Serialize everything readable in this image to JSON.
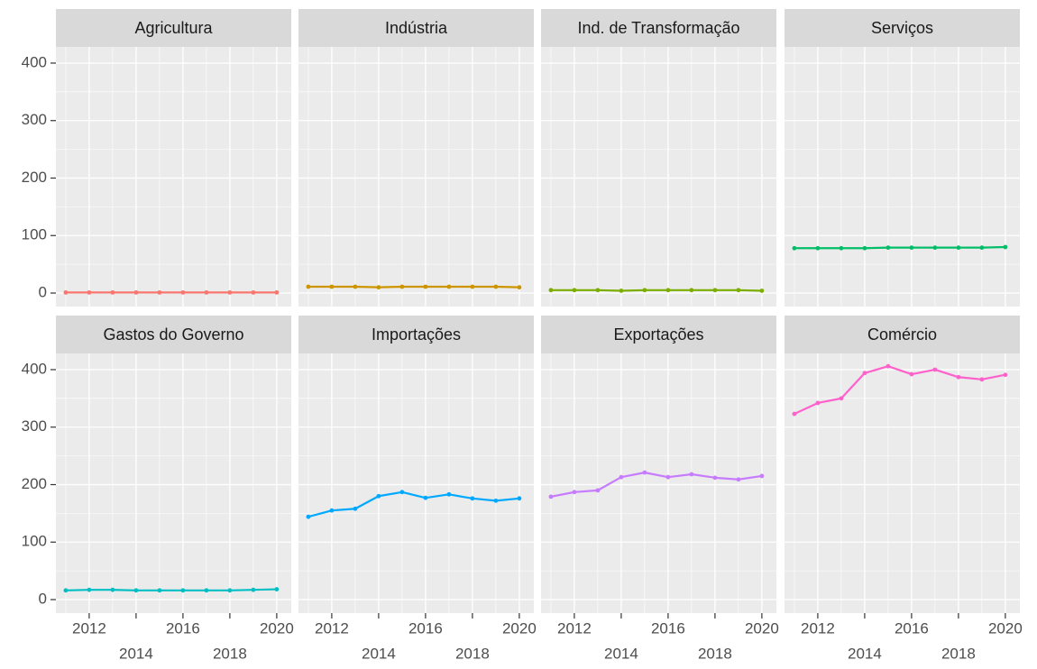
{
  "chart_data": {
    "type": "line",
    "x": [
      2011,
      2012,
      2013,
      2014,
      2015,
      2016,
      2017,
      2018,
      2019,
      2020
    ],
    "series": [
      {
        "name": "Agricultura",
        "color": "#F8766D",
        "values": [
          1,
          1,
          1,
          1,
          1,
          1,
          1,
          1,
          1,
          1
        ]
      },
      {
        "name": "Indústria",
        "color": "#CD9600",
        "values": [
          11,
          11,
          11,
          10,
          11,
          11,
          11,
          11,
          11,
          10
        ]
      },
      {
        "name": "Ind. de Transformação",
        "color": "#7CAE00",
        "values": [
          5,
          5,
          5,
          4,
          5,
          5,
          5,
          5,
          5,
          4
        ]
      },
      {
        "name": "Serviços",
        "color": "#00BE67",
        "values": [
          78,
          78,
          78,
          78,
          79,
          79,
          79,
          79,
          79,
          80
        ]
      },
      {
        "name": "Gastos do Governo",
        "color": "#00BFC4",
        "values": [
          16,
          17,
          17,
          16,
          16,
          16,
          16,
          16,
          17,
          18
        ]
      },
      {
        "name": "Importações",
        "color": "#00A9FF",
        "values": [
          144,
          155,
          158,
          180,
          187,
          177,
          183,
          176,
          172,
          176
        ]
      },
      {
        "name": "Exportações",
        "color": "#C77CFF",
        "values": [
          179,
          187,
          190,
          213,
          221,
          213,
          218,
          212,
          209,
          215
        ]
      },
      {
        "name": "Comércio",
        "color": "#FF61CC",
        "values": [
          323,
          342,
          350,
          394,
          406,
          392,
          400,
          387,
          383,
          391
        ]
      }
    ],
    "xlim": [
      2010.58,
      2020.62
    ],
    "xticks": [
      2012,
      2014,
      2016,
      2018,
      2020
    ],
    "ylim": [
      -23.5,
      428.2
    ],
    "yticks": [
      0,
      100,
      200,
      300,
      400
    ],
    "grid": true,
    "facet_cols": 4
  }
}
